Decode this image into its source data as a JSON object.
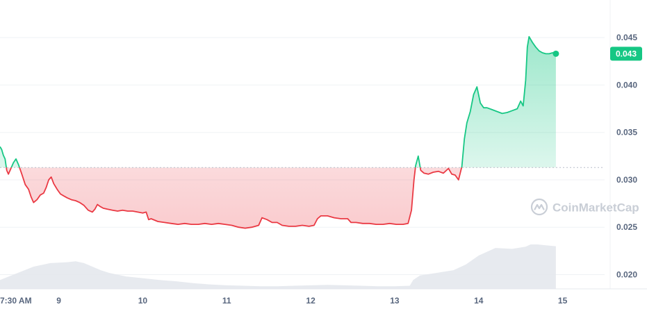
{
  "chart_data": {
    "type": "line",
    "ylim": [
      0.0185,
      0.0475
    ],
    "y_ticks": [
      "0.045",
      "0.040",
      "0.035",
      "0.030",
      "0.025",
      "0.020"
    ],
    "y_tick_values": [
      0.045,
      0.04,
      0.035,
      0.03,
      0.025,
      0.02
    ],
    "x_ticks": [
      "7:30 AM",
      "9",
      "10",
      "11",
      "12",
      "13",
      "14",
      "15"
    ],
    "x_tick_values": [
      -0.07,
      0.6,
      1.6,
      2.6,
      3.6,
      4.6,
      5.6,
      6.6
    ],
    "xlim": [
      -0.1,
      7.1
    ],
    "baseline": 0.0313,
    "current_price": "0.043",
    "colors": {
      "up": "#16c784",
      "down": "#ea3943",
      "grid": "#eff2f5",
      "badge": "#16c784",
      "volume": "#e3e6ec",
      "baseline": "#b8bec9"
    },
    "price": [
      [
        -0.1,
        0.0335
      ],
      [
        -0.08,
        0.0332
      ],
      [
        -0.06,
        0.0326
      ],
      [
        -0.04,
        0.0322
      ],
      [
        -0.02,
        0.031
      ],
      [
        0.0,
        0.0306
      ],
      [
        0.03,
        0.0312
      ],
      [
        0.06,
        0.0318
      ],
      [
        0.09,
        0.0322
      ],
      [
        0.12,
        0.0316
      ],
      [
        0.16,
        0.0306
      ],
      [
        0.2,
        0.0295
      ],
      [
        0.24,
        0.029
      ],
      [
        0.27,
        0.0282
      ],
      [
        0.3,
        0.0276
      ],
      [
        0.34,
        0.0279
      ],
      [
        0.38,
        0.0284
      ],
      [
        0.42,
        0.0286
      ],
      [
        0.45,
        0.0292
      ],
      [
        0.48,
        0.03
      ],
      [
        0.51,
        0.0303
      ],
      [
        0.54,
        0.0296
      ],
      [
        0.58,
        0.029
      ],
      [
        0.62,
        0.0285
      ],
      [
        0.66,
        0.0283
      ],
      [
        0.7,
        0.0281
      ],
      [
        0.75,
        0.0279
      ],
      [
        0.8,
        0.0278
      ],
      [
        0.85,
        0.0276
      ],
      [
        0.9,
        0.0273
      ],
      [
        0.95,
        0.0268
      ],
      [
        1.0,
        0.0266
      ],
      [
        1.03,
        0.0269
      ],
      [
        1.06,
        0.0274
      ],
      [
        1.09,
        0.0272
      ],
      [
        1.13,
        0.027
      ],
      [
        1.18,
        0.0269
      ],
      [
        1.24,
        0.0268
      ],
      [
        1.3,
        0.0267
      ],
      [
        1.36,
        0.0268
      ],
      [
        1.42,
        0.0267
      ],
      [
        1.48,
        0.0267
      ],
      [
        1.54,
        0.0266
      ],
      [
        1.6,
        0.0265
      ],
      [
        1.64,
        0.0266
      ],
      [
        1.67,
        0.0258
      ],
      [
        1.7,
        0.0259
      ],
      [
        1.78,
        0.0256
      ],
      [
        1.86,
        0.0255
      ],
      [
        1.94,
        0.0254
      ],
      [
        2.02,
        0.0253
      ],
      [
        2.1,
        0.0254
      ],
      [
        2.18,
        0.0253
      ],
      [
        2.26,
        0.0253
      ],
      [
        2.34,
        0.0254
      ],
      [
        2.42,
        0.0253
      ],
      [
        2.5,
        0.0254
      ],
      [
        2.58,
        0.0253
      ],
      [
        2.66,
        0.0252
      ],
      [
        2.74,
        0.025
      ],
      [
        2.82,
        0.0249
      ],
      [
        2.9,
        0.025
      ],
      [
        2.98,
        0.0252
      ],
      [
        3.02,
        0.026
      ],
      [
        3.08,
        0.0258
      ],
      [
        3.14,
        0.0255
      ],
      [
        3.2,
        0.0255
      ],
      [
        3.26,
        0.0252
      ],
      [
        3.34,
        0.0251
      ],
      [
        3.42,
        0.0251
      ],
      [
        3.5,
        0.0252
      ],
      [
        3.58,
        0.0251
      ],
      [
        3.64,
        0.0252
      ],
      [
        3.68,
        0.0259
      ],
      [
        3.72,
        0.0262
      ],
      [
        3.8,
        0.0262
      ],
      [
        3.88,
        0.026
      ],
      [
        3.96,
        0.0259
      ],
      [
        4.04,
        0.0259
      ],
      [
        4.08,
        0.0255
      ],
      [
        4.14,
        0.0255
      ],
      [
        4.22,
        0.0254
      ],
      [
        4.3,
        0.0254
      ],
      [
        4.38,
        0.0253
      ],
      [
        4.46,
        0.0253
      ],
      [
        4.54,
        0.0254
      ],
      [
        4.62,
        0.0253
      ],
      [
        4.7,
        0.0253
      ],
      [
        4.76,
        0.0254
      ],
      [
        4.8,
        0.0268
      ],
      [
        4.83,
        0.03
      ],
      [
        4.85,
        0.0315
      ],
      [
        4.88,
        0.0325
      ],
      [
        4.91,
        0.031
      ],
      [
        4.95,
        0.0307
      ],
      [
        5.0,
        0.0306
      ],
      [
        5.06,
        0.0308
      ],
      [
        5.12,
        0.0309
      ],
      [
        5.18,
        0.0307
      ],
      [
        5.24,
        0.0312
      ],
      [
        5.28,
        0.0306
      ],
      [
        5.32,
        0.0305
      ],
      [
        5.36,
        0.03
      ],
      [
        5.4,
        0.0314
      ],
      [
        5.43,
        0.0343
      ],
      [
        5.46,
        0.036
      ],
      [
        5.5,
        0.0372
      ],
      [
        5.54,
        0.039
      ],
      [
        5.58,
        0.0398
      ],
      [
        5.62,
        0.0381
      ],
      [
        5.66,
        0.0376
      ],
      [
        5.7,
        0.0376
      ],
      [
        5.76,
        0.0374
      ],
      [
        5.82,
        0.0372
      ],
      [
        5.88,
        0.037
      ],
      [
        5.94,
        0.0371
      ],
      [
        6.0,
        0.0373
      ],
      [
        6.06,
        0.0375
      ],
      [
        6.1,
        0.0383
      ],
      [
        6.13,
        0.0378
      ],
      [
        6.16,
        0.0405
      ],
      [
        6.18,
        0.044
      ],
      [
        6.2,
        0.0451
      ],
      [
        6.24,
        0.0445
      ],
      [
        6.28,
        0.044
      ],
      [
        6.32,
        0.0436
      ],
      [
        6.36,
        0.0434
      ],
      [
        6.4,
        0.0433
      ],
      [
        6.44,
        0.0433
      ],
      [
        6.48,
        0.0434
      ],
      [
        6.52,
        0.0433
      ]
    ],
    "volume": [
      [
        -0.1,
        0.2
      ],
      [
        0.1,
        0.35
      ],
      [
        0.3,
        0.5
      ],
      [
        0.5,
        0.58
      ],
      [
        0.7,
        0.6
      ],
      [
        0.8,
        0.62
      ],
      [
        0.9,
        0.58
      ],
      [
        1.0,
        0.5
      ],
      [
        1.1,
        0.42
      ],
      [
        1.2,
        0.36
      ],
      [
        1.4,
        0.28
      ],
      [
        1.6,
        0.24
      ],
      [
        1.8,
        0.2
      ],
      [
        2.0,
        0.17
      ],
      [
        2.2,
        0.13
      ],
      [
        2.4,
        0.1
      ],
      [
        2.6,
        0.08
      ],
      [
        2.8,
        0.07
      ],
      [
        3.0,
        0.06
      ],
      [
        3.2,
        0.06
      ],
      [
        3.4,
        0.07
      ],
      [
        3.6,
        0.08
      ],
      [
        3.8,
        0.09
      ],
      [
        4.0,
        0.08
      ],
      [
        4.2,
        0.07
      ],
      [
        4.4,
        0.06
      ],
      [
        4.6,
        0.06
      ],
      [
        4.78,
        0.07
      ],
      [
        4.82,
        0.2
      ],
      [
        4.9,
        0.3
      ],
      [
        5.1,
        0.36
      ],
      [
        5.3,
        0.42
      ],
      [
        5.45,
        0.55
      ],
      [
        5.6,
        0.75
      ],
      [
        5.8,
        0.92
      ],
      [
        6.0,
        0.9
      ],
      [
        6.16,
        0.95
      ],
      [
        6.22,
        1.0
      ],
      [
        6.3,
        1.0
      ],
      [
        6.4,
        0.98
      ],
      [
        6.52,
        0.96
      ]
    ],
    "watermark": "CoinMarketCap"
  }
}
